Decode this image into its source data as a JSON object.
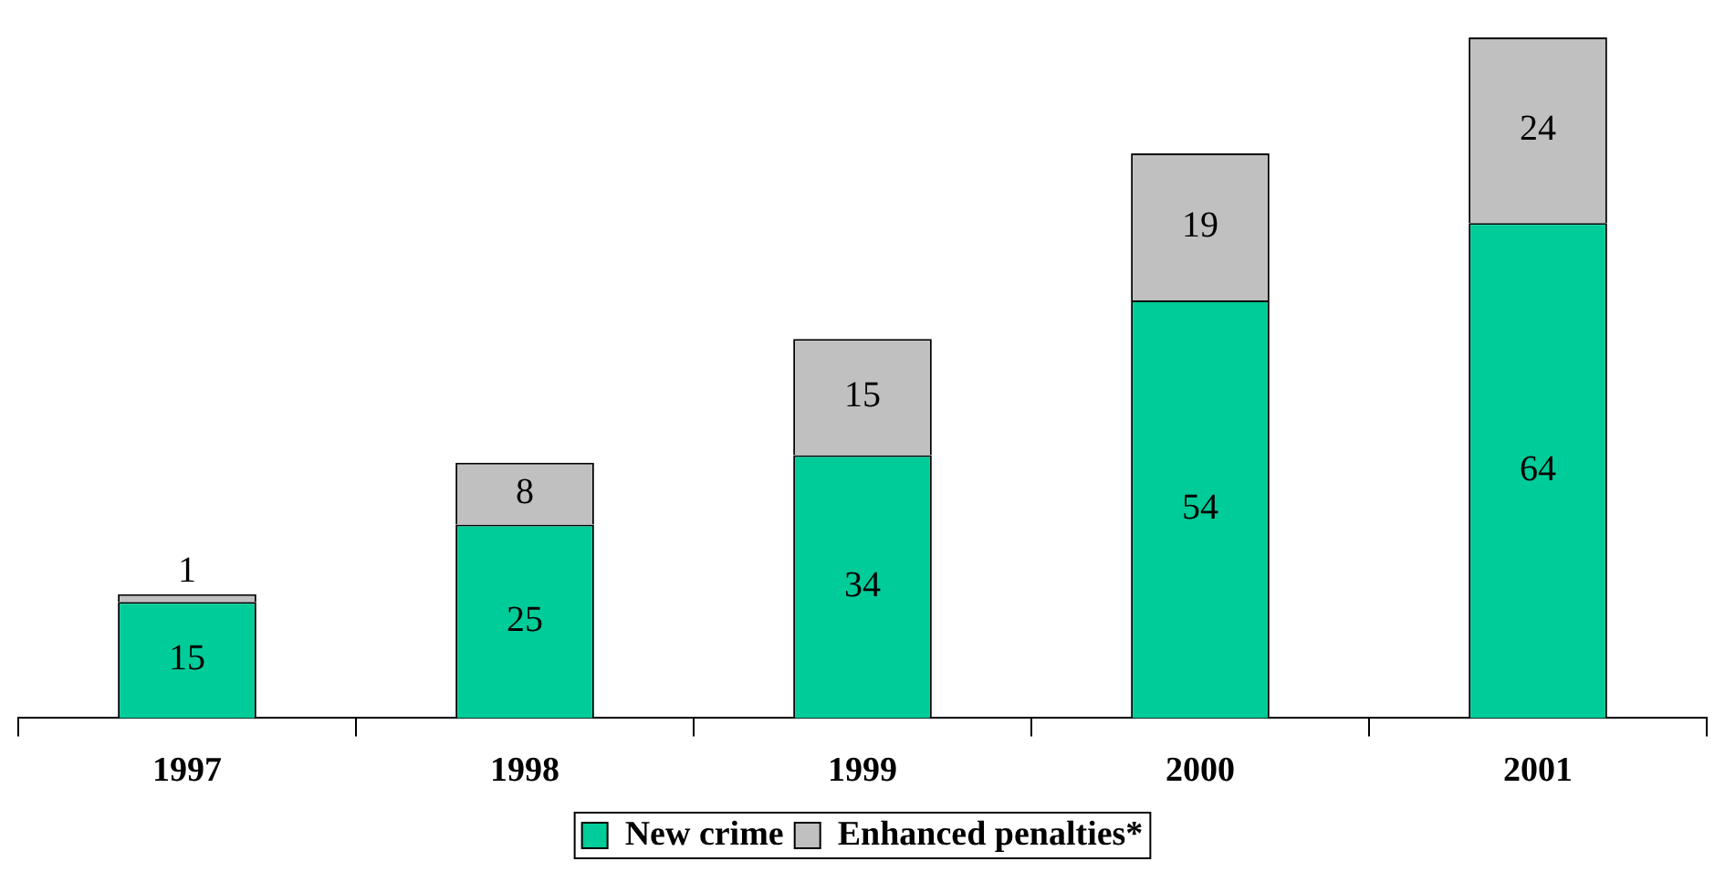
{
  "chart_data": {
    "type": "bar",
    "stacked": true,
    "categories": [
      "1997",
      "1998",
      "1999",
      "2000",
      "2001"
    ],
    "series": [
      {
        "name": "New crime",
        "color": "#00cc99",
        "values": [
          15,
          25,
          34,
          54,
          64
        ]
      },
      {
        "name": "Enhanced penalties*",
        "color": "#c0c0c0",
        "values": [
          1,
          8,
          15,
          19,
          24
        ]
      }
    ],
    "data_labels": true,
    "legend": "bottom",
    "tick_labels": "x"
  }
}
